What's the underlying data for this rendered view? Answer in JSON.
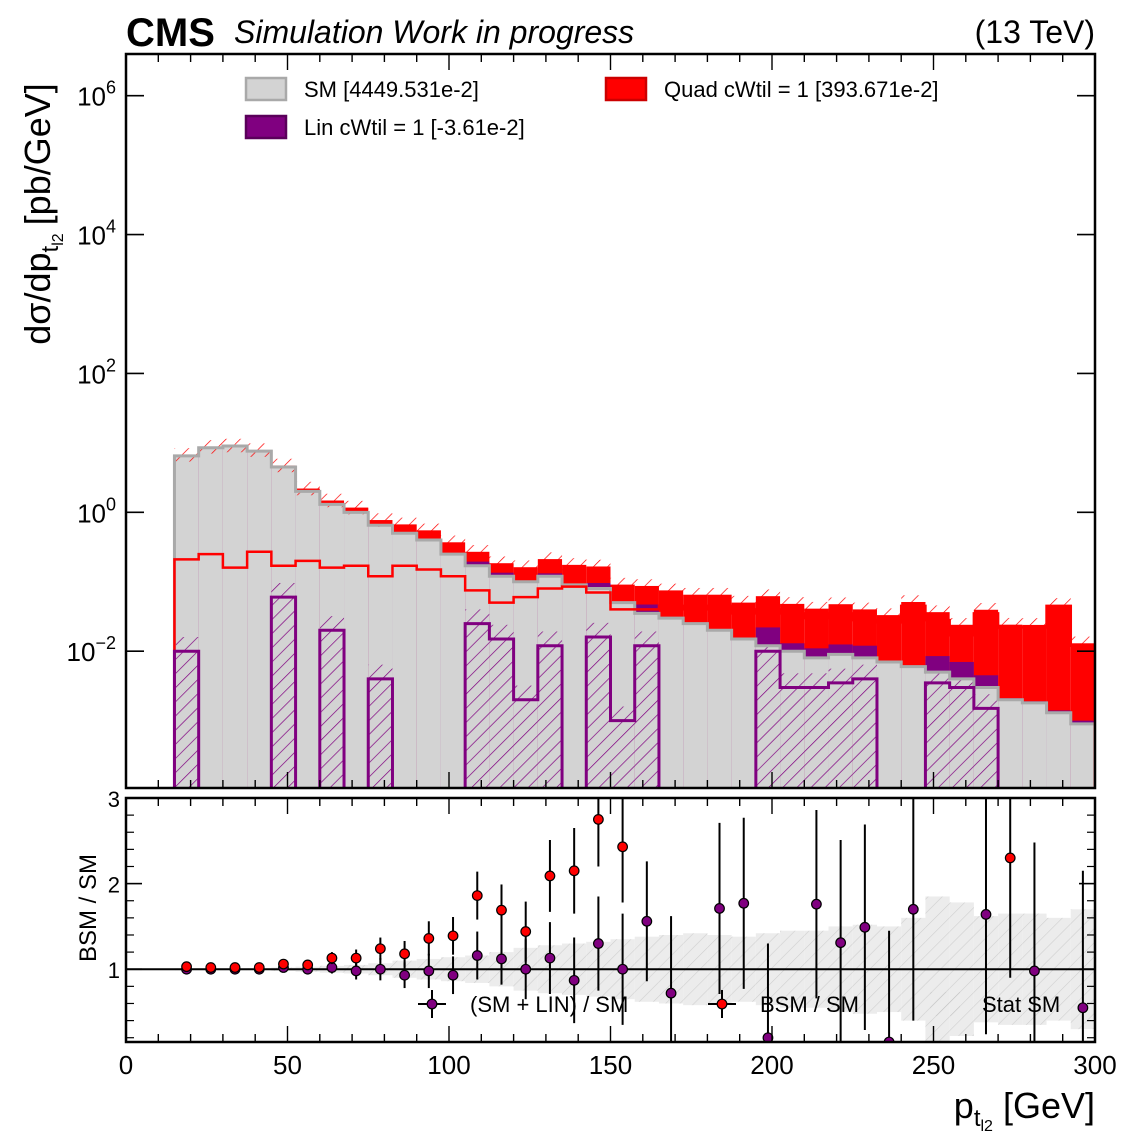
{
  "header": {
    "experiment": "CMS",
    "status": "Simulation Work in progress",
    "energy": "(13 TeV)"
  },
  "colors": {
    "sm_fill": "#d3d3d3",
    "sm_edge": "#a9a9a9",
    "lin_fill": "#800080",
    "quad_fill": "#ff0000",
    "hatch_gray": "#bbbbbb",
    "ratio_lin_marker": "#800080",
    "ratio_bsm_marker": "#ff0000"
  },
  "chart_data": [
    {
      "id": "main",
      "type": "area",
      "step": true,
      "xlim": [
        0,
        300
      ],
      "ylim_log10": [
        -3.97,
        6.6
      ],
      "yscale": "log",
      "ytick_exponents": [
        -2,
        0,
        2,
        4,
        6
      ],
      "ytick_base": "10",
      "ylabel_main": "dσ/dp",
      "ylabel_sub": "t",
      "ylabel_subsub": "l2",
      "ylabel_unit": "[pb/GeV]",
      "bin_edges": [
        15,
        22.5,
        30,
        37.5,
        45,
        52.5,
        60,
        67.5,
        75,
        82.5,
        90,
        97.5,
        105,
        112.5,
        120,
        127.5,
        135,
        142.5,
        150,
        157.5,
        165,
        172.5,
        180,
        187.5,
        195,
        202.5,
        210,
        217.5,
        225,
        232.5,
        240,
        247.5,
        255,
        262.5,
        270,
        277.5,
        285,
        292.5,
        300
      ],
      "legend": [
        {
          "key": "sm",
          "label": "SM [4449.531e-2]"
        },
        {
          "key": "quad",
          "label": "Quad cWtil = 1 [393.671e-2]"
        },
        {
          "key": "lin",
          "label": "Lin cWtil = 1 [-3.61e-2]"
        }
      ],
      "series": [
        {
          "name": "SM [4449.531e-2]",
          "key": "sm",
          "values": [
            6.5,
            8.5,
            9.0,
            7.6,
            4.5,
            2.0,
            1.3,
            1.0,
            0.65,
            0.5,
            0.4,
            0.25,
            0.17,
            0.12,
            0.1,
            0.12,
            0.09,
            0.08,
            0.05,
            0.035,
            0.03,
            0.025,
            0.02,
            0.015,
            0.012,
            0.01,
            0.008,
            0.009,
            0.008,
            0.007,
            0.006,
            0.005,
            0.004,
            0.003,
            0.002,
            0.0018,
            0.0013,
            0.0009
          ]
        },
        {
          "name": "Lin cWtil = 1 [-3.61e-2]",
          "key": "lin",
          "values": [
            0.01,
            0.0001,
            0.0001,
            0.0001,
            0.06,
            0.0001,
            0.02,
            0.0001,
            0.004,
            0.0001,
            0.0001,
            0.0001,
            0.025,
            0.015,
            0.002,
            0.012,
            0.0001,
            0.016,
            0.001,
            0.012,
            0.0001,
            0.0001,
            0.0001,
            0.0001,
            0.01,
            0.003,
            0.003,
            0.0035,
            0.004,
            0.0001,
            0.0001,
            0.0035,
            0.003,
            0.0015,
            0.0001,
            0.0001,
            0.0001,
            0.0001
          ]
        },
        {
          "name": "Quad cWtil = 1 [393.671e-2]",
          "key": "quad",
          "values": [
            0.21,
            0.25,
            0.16,
            0.27,
            0.17,
            0.2,
            0.16,
            0.17,
            0.12,
            0.17,
            0.15,
            0.12,
            0.075,
            0.05,
            0.06,
            0.08,
            0.085,
            0.07,
            0.04,
            0.04,
            0.045,
            0.04,
            0.045,
            0.035,
            0.04,
            0.035,
            0.03,
            0.035,
            0.028,
            0.026,
            0.045,
            0.028,
            0.017,
            0.035,
            0.022,
            0.022,
            0.045,
            0.012
          ]
        }
      ]
    },
    {
      "id": "ratio",
      "type": "scatter",
      "xlim": [
        0,
        300
      ],
      "ylim": [
        0.15,
        3.0
      ],
      "yticks": [
        1,
        2,
        3
      ],
      "xticks": [
        0,
        50,
        100,
        150,
        200,
        250,
        300
      ],
      "xlabel_main": "p",
      "xlabel_sub": "t",
      "xlabel_subsub": "l2",
      "xlabel_unit": "[GeV]",
      "ylabel": "BSM / SM",
      "legend": [
        {
          "key": "lin_ratio",
          "label": "(SM + LIN) / SM"
        },
        {
          "key": "bsm_ratio",
          "label": "BSM / SM"
        },
        {
          "key": "stat_sm",
          "label": "Stat SM"
        }
      ],
      "x": [
        18.75,
        26.25,
        33.75,
        41.25,
        48.75,
        56.25,
        63.75,
        71.25,
        78.75,
        86.25,
        93.75,
        101.25,
        108.75,
        116.25,
        123.75,
        131.25,
        138.75,
        146.25,
        153.75,
        161.25,
        168.75,
        176.25,
        183.75,
        191.25,
        198.75,
        206.25,
        213.75,
        221.25,
        228.75,
        236.25,
        243.75,
        251.25,
        258.75,
        266.25,
        273.75,
        281.25,
        288.75,
        296.25
      ],
      "series": [
        {
          "name": "(SM + LIN) / SM",
          "key": "lin_ratio",
          "values": [
            1.0,
            1.0,
            1.0,
            1.0,
            1.02,
            1.0,
            1.02,
            0.98,
            1.0,
            0.93,
            0.98,
            0.93,
            1.16,
            1.12,
            1.0,
            1.13,
            0.87,
            1.3,
            1.0,
            1.56,
            0.72,
            null,
            1.71,
            1.77,
            0.2,
            null,
            1.76,
            1.31,
            1.49,
            0.15,
            1.7,
            null,
            null,
            1.64,
            null,
            0.98,
            null,
            0.55
          ],
          "err": [
            0.02,
            0.02,
            0.02,
            0.02,
            0.04,
            0.05,
            0.07,
            0.1,
            0.13,
            0.15,
            0.2,
            0.22,
            0.28,
            0.3,
            0.35,
            0.42,
            0.5,
            0.55,
            0.65,
            0.7,
            0.9,
            0,
            1.0,
            1.0,
            1.1,
            0,
            1.1,
            1.2,
            1.2,
            1.3,
            1.3,
            0,
            0,
            1.4,
            0,
            1.5,
            0,
            1.6
          ]
        },
        {
          "name": "BSM / SM",
          "key": "bsm_ratio",
          "values": [
            1.03,
            1.02,
            1.02,
            1.02,
            1.06,
            1.05,
            1.13,
            1.13,
            1.24,
            1.18,
            1.36,
            1.39,
            1.86,
            1.69,
            1.44,
            2.09,
            2.15,
            2.75,
            2.43,
            null,
            null,
            null,
            null,
            null,
            null,
            null,
            null,
            null,
            null,
            null,
            null,
            null,
            null,
            null,
            2.3,
            null,
            null,
            null
          ],
          "err": [
            0.02,
            0.02,
            0.02,
            0.02,
            0.04,
            0.05,
            0.07,
            0.1,
            0.13,
            0.15,
            0.2,
            0.22,
            0.28,
            0.3,
            0.35,
            0.42,
            0.5,
            0.55,
            0.65,
            0,
            0,
            0,
            0,
            0,
            0,
            0,
            0,
            0,
            0,
            0,
            0,
            0,
            0,
            0,
            1.4,
            0,
            0,
            0
          ]
        },
        {
          "name": "Stat SM",
          "key": "stat_sm",
          "bands": [
            0.01,
            0.01,
            0.01,
            0.01,
            0.02,
            0.03,
            0.04,
            0.05,
            0.07,
            0.1,
            0.12,
            0.14,
            0.16,
            0.2,
            0.25,
            0.28,
            0.3,
            0.32,
            0.35,
            0.38,
            0.4,
            0.42,
            0.4,
            0.38,
            0.42,
            0.45,
            0.45,
            0.5,
            0.52,
            0.5,
            0.6,
            0.85,
            0.78,
            0.62,
            0.65,
            0.65,
            0.6,
            0.7
          ]
        }
      ]
    }
  ]
}
